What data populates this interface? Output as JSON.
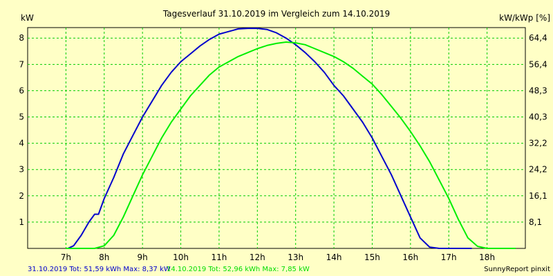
{
  "chart_data": {
    "type": "line",
    "title": "Tagesverlauf 31.10.2019 im Vergleich zum 14.10.2019",
    "ylabel_left": "kW",
    "ylabel_right": "kW/kWp [%]",
    "x_ticks": [
      "7h",
      "8h",
      "9h",
      "10h",
      "11h",
      "12h",
      "13h",
      "14h",
      "15h",
      "16h",
      "17h",
      "18h"
    ],
    "y_ticks_left": [
      "1",
      "2",
      "3",
      "4",
      "5",
      "6",
      "7",
      "8"
    ],
    "y_ticks_right": [
      "8,1",
      "16,1",
      "24,2",
      "32,2",
      "40,3",
      "48,3",
      "56,4",
      "64,4"
    ],
    "xlim": [
      6.0,
      19.0
    ],
    "ylim": [
      0,
      8.4
    ],
    "grid": true,
    "series": [
      {
        "name": "31.10.2019",
        "color": "#0000cc",
        "x": [
          7.05,
          7.2,
          7.4,
          7.6,
          7.75,
          7.85,
          8.0,
          8.25,
          8.5,
          8.75,
          9.0,
          9.25,
          9.5,
          9.75,
          10.0,
          10.25,
          10.5,
          10.75,
          11.0,
          11.25,
          11.5,
          11.75,
          12.0,
          12.25,
          12.5,
          12.75,
          13.0,
          13.25,
          13.5,
          13.75,
          14.0,
          14.25,
          14.5,
          14.75,
          15.0,
          15.25,
          15.5,
          15.75,
          16.0,
          16.25,
          16.5,
          16.75,
          16.85,
          17.0,
          17.3,
          17.6
        ],
        "y": [
          0.0,
          0.1,
          0.5,
          1.0,
          1.3,
          1.3,
          1.9,
          2.7,
          3.6,
          4.3,
          5.0,
          5.6,
          6.2,
          6.7,
          7.1,
          7.4,
          7.7,
          7.95,
          8.15,
          8.25,
          8.35,
          8.37,
          8.37,
          8.33,
          8.2,
          8.0,
          7.75,
          7.45,
          7.1,
          6.7,
          6.2,
          5.8,
          5.3,
          4.8,
          4.2,
          3.5,
          2.8,
          2.0,
          1.2,
          0.4,
          0.05,
          0.0,
          0.0,
          0.0,
          0.0,
          0.0
        ]
      },
      {
        "name": "14.10.2019",
        "color": "#00ee00",
        "x": [
          7.0,
          7.3,
          7.5,
          7.75,
          8.0,
          8.25,
          8.5,
          8.75,
          9.0,
          9.25,
          9.5,
          9.75,
          10.0,
          10.25,
          10.5,
          10.75,
          11.0,
          11.25,
          11.5,
          11.75,
          12.0,
          12.25,
          12.5,
          12.75,
          13.0,
          13.25,
          13.5,
          13.75,
          14.0,
          14.25,
          14.5,
          14.75,
          15.0,
          15.25,
          15.5,
          15.75,
          16.0,
          16.25,
          16.5,
          16.75,
          17.0,
          17.25,
          17.5,
          17.75,
          18.0,
          18.25,
          18.5,
          18.75
        ],
        "y": [
          0.0,
          0.0,
          0.0,
          0.0,
          0.1,
          0.5,
          1.2,
          2.0,
          2.8,
          3.5,
          4.2,
          4.8,
          5.3,
          5.8,
          6.2,
          6.6,
          6.9,
          7.1,
          7.3,
          7.45,
          7.6,
          7.72,
          7.8,
          7.85,
          7.82,
          7.75,
          7.6,
          7.45,
          7.3,
          7.1,
          6.85,
          6.55,
          6.25,
          5.85,
          5.4,
          4.95,
          4.45,
          3.9,
          3.3,
          2.6,
          1.9,
          1.1,
          0.4,
          0.08,
          0.0,
          0.0,
          0.0,
          0.0
        ]
      }
    ],
    "footer": {
      "series1_text": "31.10.2019 Tot: 51,59 kWh Max: 8,37 kW",
      "series2_text": "14.10.2019 Tot: 52,96 kWh Max: 7,85 kW",
      "credit": "SunnyReport pinxit"
    },
    "colors": {
      "background": "#ffffc6",
      "plot_background": "#ffffc6",
      "grid": "#00cc00",
      "axis": "#000000"
    }
  }
}
